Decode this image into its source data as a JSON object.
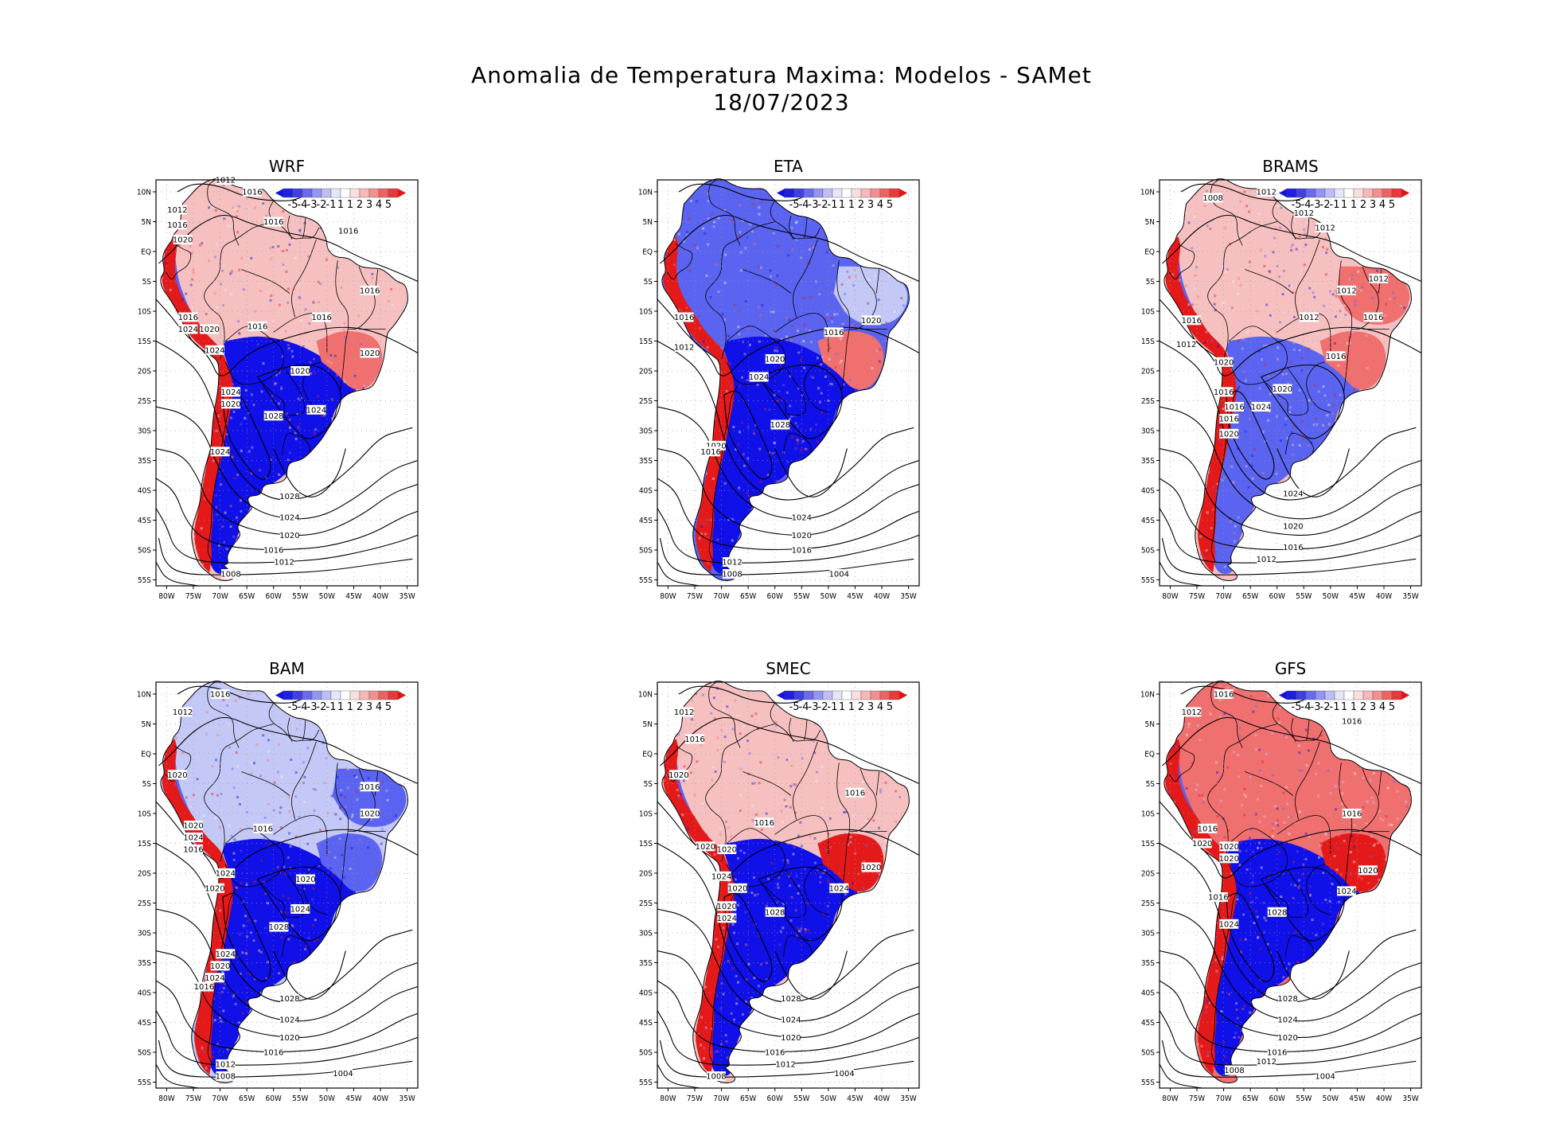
{
  "figure": {
    "title_line1": "Anomalia de Temperatura Maxima: Modelos - SAMet",
    "title_line2": "18/07/2023"
  },
  "colors": {
    "strong_blue": "#1010e8",
    "mid_blue": "#5a64f0",
    "light_blue": "#c4c8f6",
    "neutral": "#f7f1f1",
    "light_red": "#f6c0c0",
    "mid_red": "#f07070",
    "strong_red": "#e41a1a",
    "land_outline": "#000000",
    "gridline": "#9a9a9a"
  },
  "axes": {
    "lon_labels": [
      "80W",
      "75W",
      "70W",
      "65W",
      "60W",
      "55W",
      "50W",
      "45W",
      "40W",
      "35W"
    ],
    "lat_labels": [
      "10N",
      "5N",
      "EQ",
      "5S",
      "10S",
      "15S",
      "20S",
      "25S",
      "30S",
      "35S",
      "40S",
      "45S",
      "50S",
      "55S"
    ],
    "lon_range": [
      -82,
      -33
    ],
    "lat_range": [
      12,
      -56
    ]
  },
  "legend": {
    "labels": [
      "-5",
      "-4",
      "-3",
      "-2",
      "-1",
      "1",
      "1",
      "2",
      "3",
      "4",
      "5"
    ],
    "bin_colors": [
      "#1f1fe0",
      "#4040e6",
      "#6a6aec",
      "#9494f2",
      "#bebef7",
      "#e6e6fb",
      "#ffffff",
      "#fbdede",
      "#f7b8b8",
      "#f29090",
      "#ee6262",
      "#e83a3a"
    ]
  },
  "panels": [
    {
      "name": "WRF",
      "anomaly": {
        "tropics": "light_red",
        "central_south": "strong_blue",
        "patagonia": "strong_blue",
        "andes": "strong_red",
        "southeast_coast": "mid_red",
        "northeast": "light_red"
      },
      "isobars": [
        {
          "value": "1012",
          "lon": -69,
          "lat": 12
        },
        {
          "value": "1016",
          "lon": -64,
          "lat": 10
        },
        {
          "value": "1012",
          "lon": -78,
          "lat": 7
        },
        {
          "value": "1016",
          "lon": -78,
          "lat": 4.5
        },
        {
          "value": "1020",
          "lon": -77,
          "lat": 2
        },
        {
          "value": "1016",
          "lon": -60,
          "lat": 5
        },
        {
          "value": "1016",
          "lon": -46,
          "lat": 3.5
        },
        {
          "value": "1016",
          "lon": -42,
          "lat": -6.5
        },
        {
          "value": "1016",
          "lon": -51,
          "lat": -11
        },
        {
          "value": "1016",
          "lon": -76,
          "lat": -11
        },
        {
          "value": "1024",
          "lon": -76,
          "lat": -13
        },
        {
          "value": "1016",
          "lon": -63,
          "lat": -12.5
        },
        {
          "value": "1020",
          "lon": -72,
          "lat": -13
        },
        {
          "value": "1024",
          "lon": -71,
          "lat": -16.5
        },
        {
          "value": "1020",
          "lon": -42,
          "lat": -17
        },
        {
          "value": "1020",
          "lon": -55,
          "lat": -20
        },
        {
          "value": "1024",
          "lon": -68,
          "lat": -23.5
        },
        {
          "value": "1020",
          "lon": -68,
          "lat": -25.5
        },
        {
          "value": "1024",
          "lon": -52,
          "lat": -26.5
        },
        {
          "value": "1028",
          "lon": -60,
          "lat": -27.5
        },
        {
          "value": "1024",
          "lon": -70,
          "lat": -33.5
        },
        {
          "value": "1028",
          "lon": -57,
          "lat": -41
        },
        {
          "value": "1024",
          "lon": -57,
          "lat": -44.5
        },
        {
          "value": "1020",
          "lon": -57,
          "lat": -47.5
        },
        {
          "value": "1016",
          "lon": -60,
          "lat": -50
        },
        {
          "value": "1012",
          "lon": -58,
          "lat": -52
        },
        {
          "value": "1008",
          "lon": -68,
          "lat": -54
        }
      ]
    },
    {
      "name": "ETA",
      "anomaly": {
        "tropics": "mid_blue",
        "central_south": "strong_blue",
        "patagonia": "strong_blue",
        "andes": "strong_red",
        "southeast_coast": "mid_red",
        "northeast": "light_blue"
      },
      "isobars": [
        {
          "value": "1016",
          "lon": -77,
          "lat": -11
        },
        {
          "value": "1012",
          "lon": -77,
          "lat": -16
        },
        {
          "value": "1016",
          "lon": -49,
          "lat": -13.5
        },
        {
          "value": "1020",
          "lon": -42,
          "lat": -11.5
        },
        {
          "value": "1020",
          "lon": -60,
          "lat": -18
        },
        {
          "value": "1024",
          "lon": -63,
          "lat": -21
        },
        {
          "value": "1028",
          "lon": -59,
          "lat": -29
        },
        {
          "value": "1020",
          "lon": -71,
          "lat": -32.5
        },
        {
          "value": "1016",
          "lon": -72,
          "lat": -33.5
        },
        {
          "value": "1024",
          "lon": -55,
          "lat": -44.5
        },
        {
          "value": "1020",
          "lon": -55,
          "lat": -47.5
        },
        {
          "value": "1016",
          "lon": -55,
          "lat": -50
        },
        {
          "value": "1012",
          "lon": -68,
          "lat": -52
        },
        {
          "value": "1008",
          "lon": -68,
          "lat": -54
        },
        {
          "value": "1004",
          "lon": -48,
          "lat": -54
        }
      ]
    },
    {
      "name": "BRAMS",
      "anomaly": {
        "tropics": "light_red",
        "central_south": "mid_blue",
        "patagonia": "strong_blue",
        "andes": "strong_red",
        "southeast_coast": "mid_red",
        "northeast": "mid_red"
      },
      "isobars": [
        {
          "value": "1008",
          "lon": -72,
          "lat": 9
        },
        {
          "value": "1012",
          "lon": -62,
          "lat": 10
        },
        {
          "value": "1012",
          "lon": -55,
          "lat": 6.5
        },
        {
          "value": "1012",
          "lon": -51,
          "lat": 4
        },
        {
          "value": "1012",
          "lon": -41,
          "lat": -4.5
        },
        {
          "value": "1012",
          "lon": -47,
          "lat": -6.5
        },
        {
          "value": "1012",
          "lon": -54,
          "lat": -11
        },
        {
          "value": "1016",
          "lon": -42,
          "lat": -11
        },
        {
          "value": "1016",
          "lon": -76,
          "lat": -11.5
        },
        {
          "value": "1012",
          "lon": -77,
          "lat": -15.5
        },
        {
          "value": "1016",
          "lon": -49,
          "lat": -17.5
        },
        {
          "value": "1020",
          "lon": -70,
          "lat": -18.5
        },
        {
          "value": "1020",
          "lon": -59,
          "lat": -23
        },
        {
          "value": "1016",
          "lon": -70,
          "lat": -23.5
        },
        {
          "value": "1016",
          "lon": -68,
          "lat": -26
        },
        {
          "value": "1024",
          "lon": -63,
          "lat": -26
        },
        {
          "value": "1016",
          "lon": -69,
          "lat": -28
        },
        {
          "value": "1020",
          "lon": -69,
          "lat": -30.5
        },
        {
          "value": "1024",
          "lon": -57,
          "lat": -40.5
        },
        {
          "value": "1020",
          "lon": -57,
          "lat": -46
        },
        {
          "value": "1016",
          "lon": -57,
          "lat": -49.5
        },
        {
          "value": "1012",
          "lon": -62,
          "lat": -51.5
        }
      ]
    },
    {
      "name": "BAM",
      "anomaly": {
        "tropics": "light_blue",
        "central_south": "strong_blue",
        "patagonia": "strong_blue",
        "andes": "strong_red",
        "southeast_coast": "mid_blue",
        "northeast": "mid_blue"
      },
      "isobars": [
        {
          "value": "1016",
          "lon": -70,
          "lat": 10
        },
        {
          "value": "1012",
          "lon": -77,
          "lat": 7
        },
        {
          "value": "1016",
          "lon": -42,
          "lat": -5.5
        },
        {
          "value": "1020",
          "lon": -42,
          "lat": -10
        },
        {
          "value": "1020",
          "lon": -78,
          "lat": -3.5
        },
        {
          "value": "1016",
          "lon": -62,
          "lat": -12.5
        },
        {
          "value": "1020",
          "lon": -75,
          "lat": -12
        },
        {
          "value": "1024",
          "lon": -75,
          "lat": -14
        },
        {
          "value": "1016",
          "lon": -75,
          "lat": -16
        },
        {
          "value": "1020",
          "lon": -54,
          "lat": -21
        },
        {
          "value": "1024",
          "lon": -69,
          "lat": -20
        },
        {
          "value": "1020",
          "lon": -71,
          "lat": -22.5
        },
        {
          "value": "1024",
          "lon": -55,
          "lat": -26
        },
        {
          "value": "1028",
          "lon": -59,
          "lat": -29
        },
        {
          "value": "1024",
          "lon": -69,
          "lat": -33.5
        },
        {
          "value": "1020",
          "lon": -70,
          "lat": -35.5
        },
        {
          "value": "1024",
          "lon": -71,
          "lat": -37.5
        },
        {
          "value": "1016",
          "lon": -73,
          "lat": -39
        },
        {
          "value": "1028",
          "lon": -57,
          "lat": -41
        },
        {
          "value": "1024",
          "lon": -57,
          "lat": -44.5
        },
        {
          "value": "1020",
          "lon": -57,
          "lat": -47.5
        },
        {
          "value": "1016",
          "lon": -60,
          "lat": -50
        },
        {
          "value": "1012",
          "lon": -69,
          "lat": -52
        },
        {
          "value": "1008",
          "lon": -69,
          "lat": -54
        },
        {
          "value": "1004",
          "lon": -47,
          "lat": -53.5
        }
      ]
    },
    {
      "name": "SMEC",
      "anomaly": {
        "tropics": "light_red",
        "central_south": "strong_blue",
        "patagonia": "strong_blue",
        "andes": "strong_red",
        "southeast_coast": "strong_red",
        "northeast": "light_red"
      },
      "isobars": [
        {
          "value": "1012",
          "lon": -77,
          "lat": 7
        },
        {
          "value": "1016",
          "lon": -75,
          "lat": 2.5
        },
        {
          "value": "1020",
          "lon": -78,
          "lat": -3.5
        },
        {
          "value": "1016",
          "lon": -45,
          "lat": -6.5
        },
        {
          "value": "1016",
          "lon": -62,
          "lat": -11.5
        },
        {
          "value": "1020",
          "lon": -73,
          "lat": -15.5
        },
        {
          "value": "1020",
          "lon": -69,
          "lat": -16
        },
        {
          "value": "1020",
          "lon": -42,
          "lat": -19
        },
        {
          "value": "1024",
          "lon": -70,
          "lat": -20.5
        },
        {
          "value": "1020",
          "lon": -67,
          "lat": -22.5
        },
        {
          "value": "1024",
          "lon": -48,
          "lat": -22.5
        },
        {
          "value": "1020",
          "lon": -69,
          "lat": -25.5
        },
        {
          "value": "1028",
          "lon": -60,
          "lat": -26.5
        },
        {
          "value": "1024",
          "lon": -69,
          "lat": -27.5
        },
        {
          "value": "1028",
          "lon": -57,
          "lat": -41
        },
        {
          "value": "1024",
          "lon": -57,
          "lat": -44.5
        },
        {
          "value": "1020",
          "lon": -57,
          "lat": -47.5
        },
        {
          "value": "1016",
          "lon": -60,
          "lat": -50
        },
        {
          "value": "1012",
          "lon": -58,
          "lat": -52
        },
        {
          "value": "1008",
          "lon": -71,
          "lat": -54
        },
        {
          "value": "1004",
          "lon": -47,
          "lat": -53.5
        }
      ]
    },
    {
      "name": "GFS",
      "anomaly": {
        "tropics": "mid_red",
        "central_south": "strong_blue",
        "patagonia": "strong_blue",
        "andes": "strong_red",
        "southeast_coast": "strong_red",
        "northeast": "mid_red"
      },
      "isobars": [
        {
          "value": "1016",
          "lon": -70,
          "lat": 10
        },
        {
          "value": "1012",
          "lon": -76,
          "lat": 7
        },
        {
          "value": "1016",
          "lon": -46,
          "lat": 5.5
        },
        {
          "value": "1016",
          "lon": -46,
          "lat": -10
        },
        {
          "value": "1016",
          "lon": -73,
          "lat": -12.5
        },
        {
          "value": "1020",
          "lon": -74,
          "lat": -15
        },
        {
          "value": "1020",
          "lon": -69,
          "lat": -15.5
        },
        {
          "value": "1020",
          "lon": -69,
          "lat": -17.5
        },
        {
          "value": "1020",
          "lon": -43,
          "lat": -19.5
        },
        {
          "value": "1024",
          "lon": -47,
          "lat": -23
        },
        {
          "value": "1016",
          "lon": -71,
          "lat": -24
        },
        {
          "value": "1028",
          "lon": -60,
          "lat": -26.5
        },
        {
          "value": "1024",
          "lon": -69,
          "lat": -28.5
        },
        {
          "value": "1028",
          "lon": -58,
          "lat": -41
        },
        {
          "value": "1024",
          "lon": -58,
          "lat": -44.5
        },
        {
          "value": "1020",
          "lon": -58,
          "lat": -47.5
        },
        {
          "value": "1016",
          "lon": -60,
          "lat": -50
        },
        {
          "value": "1012",
          "lon": -62,
          "lat": -51.5
        },
        {
          "value": "1008",
          "lon": -68,
          "lat": -53
        },
        {
          "value": "1004",
          "lon": -51,
          "lat": -54
        }
      ]
    }
  ]
}
